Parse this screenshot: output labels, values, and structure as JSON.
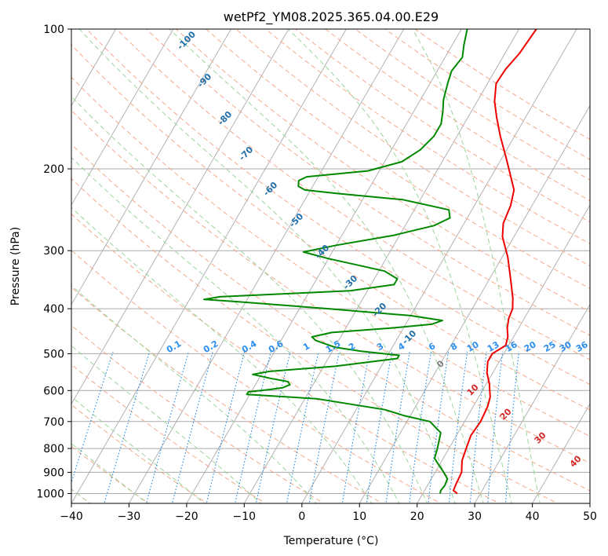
{
  "chart_data": {
    "type": "line",
    "title": "wetPf2_YM08.2025.365.04.00.E29",
    "xlabel": "Temperature (°C)",
    "ylabel": "Pressure (hPa)",
    "xlim": [
      -40,
      50
    ],
    "ylim": [
      1050,
      100
    ],
    "y_scale": "log",
    "grid": true,
    "x_ticks": [
      -40,
      -30,
      -20,
      -10,
      0,
      10,
      20,
      30,
      40,
      50
    ],
    "x_tick_labels": [
      "−40",
      "−30",
      "−20",
      "−10",
      "0",
      "10",
      "20",
      "30",
      "40",
      "50"
    ],
    "y_ticks": [
      100,
      200,
      300,
      400,
      500,
      600,
      700,
      800,
      900,
      1000
    ],
    "y_tick_labels": [
      "100",
      "200",
      "300",
      "400",
      "500",
      "600",
      "700",
      "800",
      "900",
      "1000"
    ],
    "series": [
      {
        "role": "temperature",
        "color": "#ee0000",
        "points": [
          [
            26.0,
            1000
          ],
          [
            25.0,
            985
          ],
          [
            24.8,
            950
          ],
          [
            24.6,
            900
          ],
          [
            23.5,
            850
          ],
          [
            23.0,
            800
          ],
          [
            22.5,
            750
          ],
          [
            22.8,
            700
          ],
          [
            22.5,
            650
          ],
          [
            22.0,
            620
          ],
          [
            20.5,
            580
          ],
          [
            19.0,
            550
          ],
          [
            18.0,
            520
          ],
          [
            18.0,
            500
          ],
          [
            19.5,
            480
          ],
          [
            19.0,
            460
          ],
          [
            18.0,
            440
          ],
          [
            17.3,
            420
          ],
          [
            17.0,
            400
          ],
          [
            16.0,
            380
          ],
          [
            14.0,
            350
          ],
          [
            11.0,
            310
          ],
          [
            8.0,
            280
          ],
          [
            6.8,
            262
          ],
          [
            6.3,
            240
          ],
          [
            5.3,
            222
          ],
          [
            3.0,
            205
          ],
          [
            0.5,
            188
          ],
          [
            -2.5,
            170
          ],
          [
            -5.0,
            155
          ],
          [
            -7.0,
            143
          ],
          [
            -8.5,
            131
          ],
          [
            -8.3,
            122
          ],
          [
            -7.5,
            113
          ],
          [
            -7.0,
            100
          ]
        ]
      },
      {
        "role": "dewpoint",
        "color": "#008800",
        "points": [
          [
            23.0,
            1000
          ],
          [
            22.8,
            985
          ],
          [
            23.0,
            960
          ],
          [
            22.8,
            930
          ],
          [
            21.5,
            900
          ],
          [
            20.0,
            870
          ],
          [
            18.5,
            840
          ],
          [
            18.0,
            800
          ],
          [
            17.0,
            740
          ],
          [
            14.0,
            700
          ],
          [
            9.0,
            680
          ],
          [
            5.0,
            660
          ],
          [
            -8.0,
            625
          ],
          [
            -20.5,
            612
          ],
          [
            -20.5,
            604
          ],
          [
            -17.0,
            597
          ],
          [
            -15.0,
            592
          ],
          [
            -14.0,
            583
          ],
          [
            -14.7,
            574
          ],
          [
            -18.0,
            565
          ],
          [
            -21.5,
            554
          ],
          [
            -19.0,
            546
          ],
          [
            -8.0,
            532
          ],
          [
            2.0,
            512
          ],
          [
            2.0,
            504
          ],
          [
            -5.0,
            494
          ],
          [
            -10.0,
            484
          ],
          [
            -12.0,
            476
          ],
          [
            -14.0,
            468
          ],
          [
            -15.0,
            460
          ],
          [
            -12.0,
            450
          ],
          [
            -2.0,
            440
          ],
          [
            4.5,
            432
          ],
          [
            6.0,
            424
          ],
          [
            0.0,
            414
          ],
          [
            -15.0,
            400
          ],
          [
            -32.0,
            386
          ],
          [
            -37.5,
            382
          ],
          [
            -35.0,
            377
          ],
          [
            -13.0,
            366
          ],
          [
            -6.0,
            355
          ],
          [
            -6.0,
            345
          ],
          [
            -9.0,
            332
          ],
          [
            -20.0,
            312
          ],
          [
            -25.0,
            302
          ],
          [
            -20.0,
            292
          ],
          [
            -11.0,
            278
          ],
          [
            -5.0,
            265
          ],
          [
            -3.0,
            255
          ],
          [
            -4.0,
            245
          ],
          [
            -13.0,
            233
          ],
          [
            -25.0,
            226
          ],
          [
            -31.0,
            222
          ],
          [
            -32.5,
            218
          ],
          [
            -33.0,
            212
          ],
          [
            -32.0,
            208
          ],
          [
            -22.0,
            202
          ],
          [
            -17.0,
            193
          ],
          [
            -15.0,
            182
          ],
          [
            -14.0,
            170
          ],
          [
            -14.0,
            160
          ],
          [
            -15.0,
            150
          ],
          [
            -16.0,
            142
          ],
          [
            -16.5,
            136
          ],
          [
            -17.0,
            130
          ],
          [
            -17.5,
            123
          ],
          [
            -17.0,
            115
          ],
          [
            -18.0,
            108
          ],
          [
            -19.0,
            100
          ]
        ]
      }
    ],
    "dry_adiabat_labels": [
      "-100",
      "-90",
      "-80",
      "-70",
      "-60",
      "-50",
      "-40",
      "-30",
      "-20",
      "-10",
      "0",
      "10",
      "20",
      "30",
      "40"
    ],
    "mixing_ratio_labels": [
      "0.1",
      "0.2",
      "0.4",
      "0.6",
      "1",
      "1.5",
      "2",
      "3",
      "4",
      "6",
      "8",
      "10",
      "13",
      "16",
      "20",
      "25",
      "30",
      "36"
    ],
    "styles": {
      "isotherm_color": "#aaaaaa",
      "isobar_color": "#aaaaaa",
      "dry_adiabat_color": "#f5a98c",
      "moist_adiabat_color": "#9dd39d",
      "mixing_ratio_color": "#1e88e5",
      "label_blue_dark": "#1f6ea8",
      "label_blue_light": "#2b8ff0",
      "label_red": "#d62728",
      "label_gray": "#808080"
    }
  }
}
